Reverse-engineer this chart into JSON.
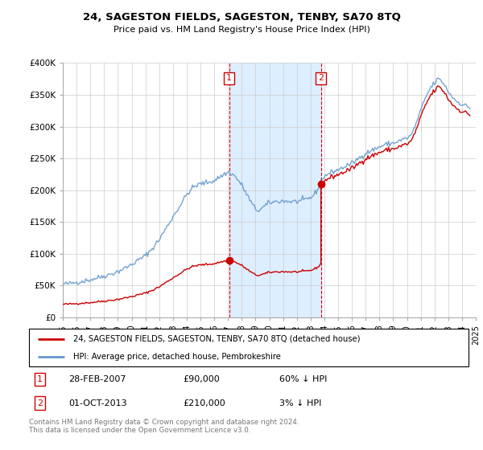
{
  "title": "24, SAGESTON FIELDS, SAGESTON, TENBY, SA70 8TQ",
  "subtitle": "Price paid vs. HM Land Registry's House Price Index (HPI)",
  "legend_line1": "24, SAGESTON FIELDS, SAGESTON, TENBY, SA70 8TQ (detached house)",
  "legend_line2": "HPI: Average price, detached house, Pembrokeshire",
  "annotation1_date": "28-FEB-2007",
  "annotation1_price": "£90,000",
  "annotation1_hpi": "60% ↓ HPI",
  "annotation2_date": "01-OCT-2013",
  "annotation2_price": "£210,000",
  "annotation2_hpi": "3% ↓ HPI",
  "footer": "Contains HM Land Registry data © Crown copyright and database right 2024.\nThis data is licensed under the Open Government Licence v3.0.",
  "red_color": "#cc0000",
  "blue_color": "#6699cc",
  "shaded_color": "#ddeeff",
  "ylim": [
    0,
    400000
  ],
  "yticks": [
    0,
    50000,
    100000,
    150000,
    200000,
    250000,
    300000,
    350000,
    400000
  ],
  "ytick_labels": [
    "£0",
    "£50K",
    "£100K",
    "£150K",
    "£200K",
    "£250K",
    "£300K",
    "£350K",
    "£400K"
  ],
  "sale1_year": 2007.083,
  "sale1_price": 90000,
  "sale2_year": 2013.75,
  "sale2_price": 210000,
  "xmin": 1995,
  "xmax": 2025
}
